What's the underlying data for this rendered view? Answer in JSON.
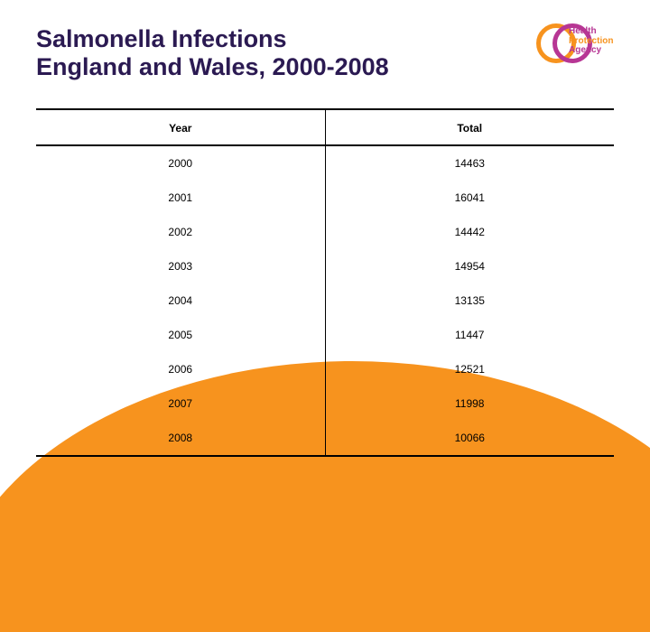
{
  "title_line1": "Salmonella Infections",
  "title_line2": "England and Wales, 2000-2008",
  "logo": {
    "line1": "Health",
    "line2": "Protection",
    "line3": "Agency",
    "ring_color_outer": "#f7931e",
    "ring_color_inner": "#b73694"
  },
  "table": {
    "columns": [
      "Year",
      "Total"
    ],
    "rows": [
      [
        "2000",
        "14463"
      ],
      [
        "2001",
        "16041"
      ],
      [
        "2002",
        "14442"
      ],
      [
        "2003",
        "14954"
      ],
      [
        "2004",
        "13135"
      ],
      [
        "2005",
        "11447"
      ],
      [
        "2006",
        "12521"
      ],
      [
        "2007",
        "11998"
      ],
      [
        "2008",
        "10066"
      ]
    ],
    "header_fontsize": 12,
    "cell_fontsize": 12,
    "border_color": "#000000",
    "col_widths": [
      "50%",
      "50%"
    ]
  },
  "colors": {
    "title": "#2b1a52",
    "swoosh": "#f7931e",
    "background": "#ffffff"
  }
}
